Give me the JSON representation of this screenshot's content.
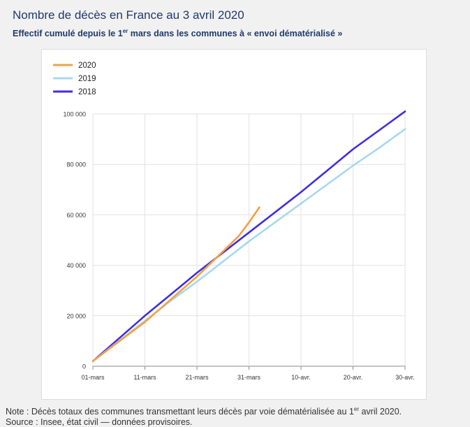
{
  "header": {
    "title": "Nombre de décès en France au 3 avril 2020",
    "subtitle_before": "Effectif cumulé depuis le 1",
    "subtitle_sup": "er",
    "subtitle_after": " mars dans les communes à « envoi dématérialisé »"
  },
  "note": {
    "before": "Note : Décès totaux des communes transmettant leurs décès par voie dématérialisée au 1",
    "sup": "er",
    "after": " avril 2020.",
    "line2": "Source : Insee, état civil — données provisoires."
  },
  "chart_data": {
    "type": "line",
    "title": "Nombre de décès en France au 3 avril 2020",
    "subtitle": "Effectif cumulé depuis le 1er mars dans les communes à « envoi dématérialisé »",
    "xlabel": "",
    "ylabel": "",
    "x_ticks": [
      "01-mars",
      "11-mars",
      "21-mars",
      "31-mars",
      "10-avr.",
      "20-avr.",
      "30-avr."
    ],
    "y_ticks": [
      "0",
      "20 000",
      "40 000",
      "60 000",
      "80 000",
      "100 000"
    ],
    "ylim": [
      0,
      100000
    ],
    "x_unit": "day index from 01-mars (0 = 01-mars, 60 = 30-avr.)",
    "xlim": [
      0,
      60
    ],
    "grid": true,
    "legend": "top-left",
    "series": [
      {
        "name": "2020",
        "color": "#f5a042",
        "x": [
          0,
          5,
          10,
          15,
          20,
          25,
          28,
          30,
          32
        ],
        "y": [
          2000,
          9800,
          17500,
          26500,
          35500,
          45500,
          51500,
          57000,
          63000
        ]
      },
      {
        "name": "2019",
        "color": "#a7d8ef",
        "x": [
          0,
          5,
          10,
          15,
          20,
          25,
          30,
          35,
          40,
          45,
          50,
          55,
          60
        ],
        "y": [
          2000,
          10000,
          18000,
          26000,
          33500,
          41500,
          49500,
          57000,
          64500,
          72000,
          79500,
          86500,
          94000
        ]
      },
      {
        "name": "2018",
        "color": "#3f2ee0",
        "x": [
          0,
          5,
          10,
          15,
          20,
          25,
          30,
          35,
          40,
          45,
          50,
          55,
          60
        ],
        "y": [
          2000,
          11000,
          20000,
          28500,
          37000,
          45000,
          53000,
          61000,
          69000,
          77500,
          86000,
          93500,
          101000
        ]
      }
    ]
  }
}
